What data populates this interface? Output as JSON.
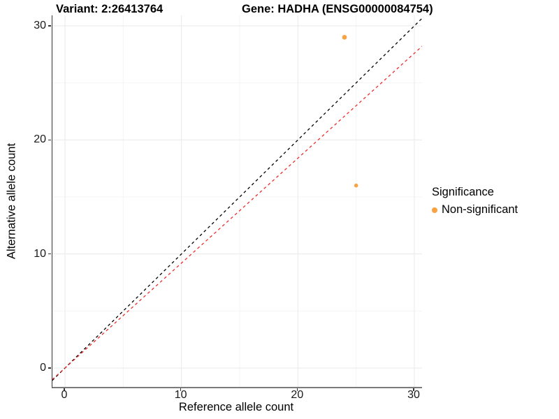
{
  "chart_data": {
    "type": "scatter",
    "title_left": "Variant: 2:26413764",
    "title_right": "Gene: HADHA (ENSG00000084754)",
    "xlabel": "Reference allele count",
    "ylabel": "Alternative allele count",
    "xlim": [
      -1.1,
      30.7
    ],
    "ylim": [
      -1.6,
      30.9
    ],
    "xticks": [
      0,
      10,
      20,
      30
    ],
    "yticks": [
      0,
      10,
      20,
      30
    ],
    "grid": "major+minor",
    "points": [
      {
        "x": 24,
        "y": 29,
        "series": "Non-significant",
        "radius": 3.4
      },
      {
        "x": 25,
        "y": 16,
        "series": "Non-significant",
        "radius": 2.8
      }
    ],
    "lines": [
      {
        "name": "identity-line",
        "slope": 1.0,
        "intercept": 0,
        "color": "#000000",
        "style": "dashed"
      },
      {
        "name": "expected-ratio-line",
        "slope": 0.92,
        "intercept": 0,
        "color": "#EE2C2C",
        "style": "dashed"
      }
    ],
    "legend": {
      "title": "Significance",
      "position": "right",
      "entries": [
        {
          "label": "Non-significant",
          "color": "#F9A242"
        }
      ]
    },
    "colors": {
      "point": "#F9A242",
      "grid_major": "#E9E9E9",
      "grid_minor": "#F4F4F4",
      "axis_line": "#333333",
      "tick_text": "#1a1a1a"
    }
  }
}
